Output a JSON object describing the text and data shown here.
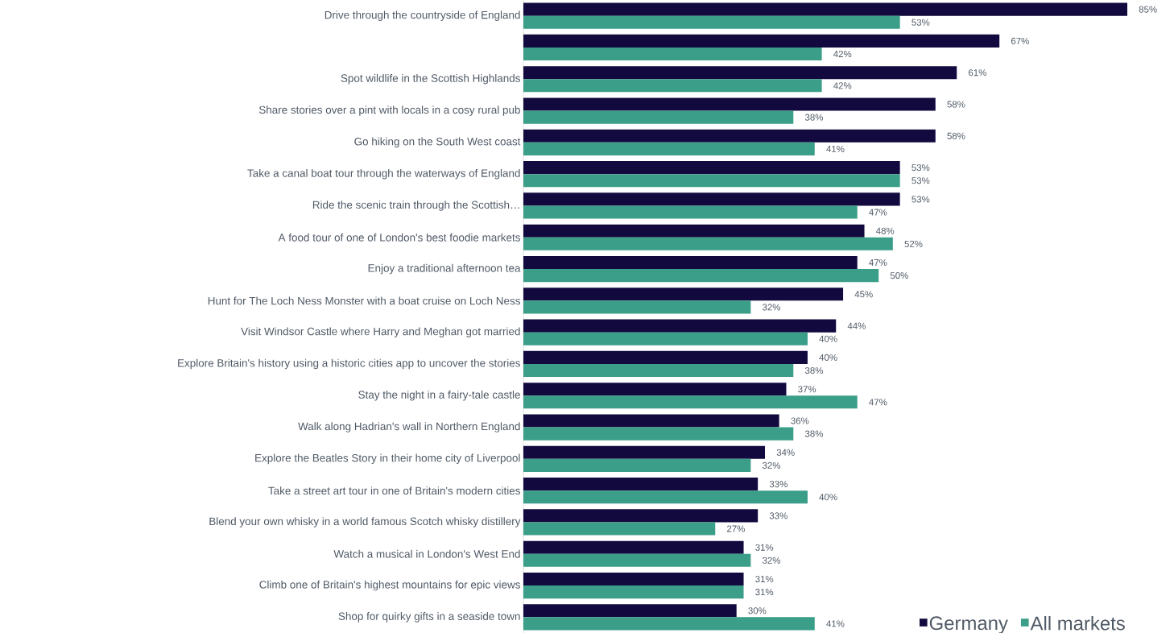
{
  "chart_data": {
    "type": "bar",
    "orientation": "horizontal",
    "legend": "bottom right",
    "tick_labels": "y",
    "categories": [
      "Drive through the countryside of England",
      null,
      "Spot wildlife in the Scottish Highlands",
      "Share stories over a pint with locals in a cosy rural pub",
      "Go hiking on the South West coast",
      "Take a canal boat tour through the waterways of England",
      "Ride the scenic train through the Scottish…",
      "A food tour of one of London's best foodie markets",
      "Enjoy a traditional afternoon tea",
      "Hunt for The Loch Ness Monster with a boat cruise on Loch Ness",
      "Visit Windsor Castle where Harry and Meghan got married",
      "Explore Britain's history using a historic cities app to uncover the stories",
      "Stay the night in a fairy-tale castle",
      "Walk along Hadrian's wall in Northern England",
      "Explore the Beatles Story in their home city of Liverpool",
      "Take a street art tour in one of Britain's modern cities",
      "Blend your own whisky in a world famous Scotch whisky distillery",
      "Watch a musical in London's West End",
      "Climb one of Britain's highest mountains for epic views",
      "Shop for quirky gifts in a seaside town"
    ],
    "series": [
      {
        "name": "Germany",
        "color": "#120a3f",
        "values": [
          85,
          67,
          61,
          58,
          58,
          53,
          53,
          48,
          47,
          45,
          44,
          40,
          37,
          36,
          34,
          33,
          33,
          31,
          31,
          30
        ],
        "value_labels": [
          "85%",
          "67%",
          "61%",
          "58%",
          "58%",
          "53%",
          "53%",
          "48%",
          "47%",
          "45%",
          "44%",
          "40%",
          "37%",
          "36%",
          "34%",
          "33%",
          "33%",
          "31%",
          "31%",
          "30%"
        ]
      },
      {
        "name": "All markets",
        "color": "#3a9e88",
        "values": [
          53,
          42,
          42,
          38,
          41,
          53,
          47,
          52,
          50,
          32,
          40,
          38,
          47,
          38,
          32,
          40,
          27,
          32,
          31,
          41
        ],
        "value_labels": [
          "53%",
          "42%",
          "42%",
          "38%",
          "41%",
          "53%",
          "47%",
          "52%",
          "50%",
          "32%",
          "40%",
          "38%",
          "47%",
          "38%",
          "32%",
          "40%",
          "27%",
          "32%",
          "31%",
          "41%"
        ]
      }
    ]
  }
}
